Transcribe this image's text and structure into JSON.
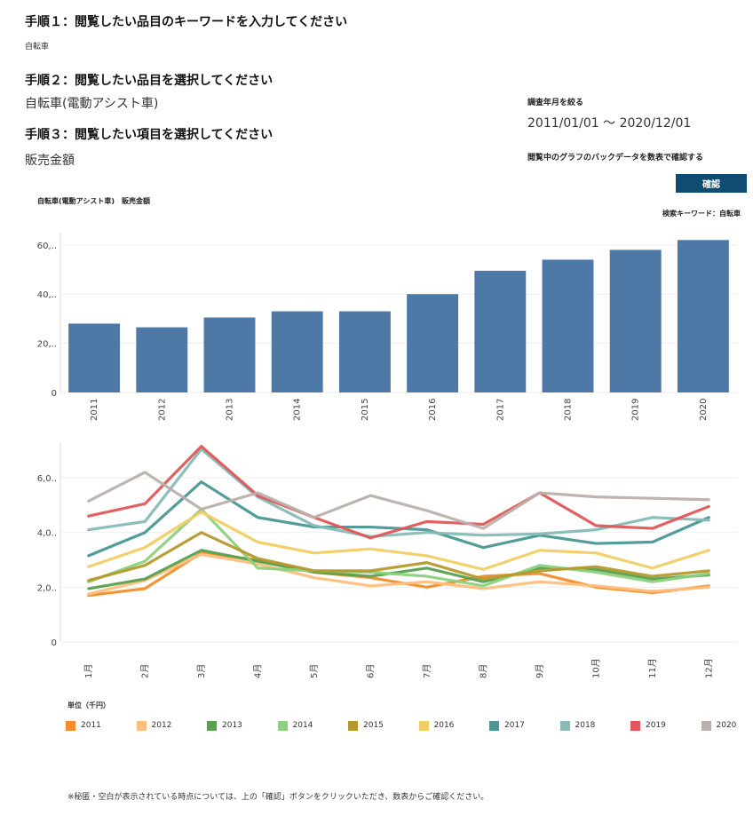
{
  "steps": {
    "step1_heading": "手順１：閲覧したい品目のキーワードを入力してください",
    "step1_value": "自転車",
    "step2_heading": "手順２：閲覧したい品目を選択してください",
    "step2_value": "自転車(電動アシスト車)",
    "step3_heading": "手順３：閲覧したい項目を選択してください",
    "step3_value": "販売金額"
  },
  "filter": {
    "period_label": "調査年月を絞る",
    "period_value": "2011/01/01 ～ 2020/12/01",
    "backdata_label": "閲覧中のグラフのバックデータを数表で確認する",
    "confirm_button": "確認"
  },
  "keyword_label": "検索キーワード：自転車",
  "unit_label": "単位（千円）",
  "footnote": "※秘匿・空白が表示されている時点については、上の「確認」ボタンをクリックいただき、数表からご確認ください。",
  "colors": {
    "bar": "#4e79a7",
    "grid": "#eeeeee",
    "button": "#0f4c71"
  },
  "chart_data": [
    {
      "type": "bar",
      "title": "自転車(電動アシスト車)　販売金額",
      "categories": [
        "2011",
        "2012",
        "2013",
        "2014",
        "2015",
        "2016",
        "2017",
        "2018",
        "2019",
        "2020"
      ],
      "values": [
        28,
        26.5,
        30.5,
        33,
        33,
        40,
        49.5,
        54,
        58,
        62
      ],
      "ylim": [
        0,
        65
      ],
      "yticks": [
        0,
        20,
        40,
        60
      ],
      "ytick_labels": [
        "0",
        "20,..",
        "40,..",
        "60,.."
      ],
      "xlabel": "",
      "ylabel": ""
    },
    {
      "type": "line",
      "categories": [
        "1月",
        "2月",
        "3月",
        "4月",
        "5月",
        "6月",
        "7月",
        "8月",
        "9月",
        "10月",
        "11月",
        "12月"
      ],
      "ylim": [
        0,
        7.3
      ],
      "yticks": [
        0,
        2,
        4,
        6
      ],
      "ytick_labels": [
        "0",
        "2,0..",
        "4,0..",
        "6,0.."
      ],
      "legend_position": "bottom",
      "series": [
        {
          "name": "2011",
          "color": "#f28e2b",
          "values": [
            1.7,
            1.95,
            3.25,
            3.0,
            2.55,
            2.35,
            2.0,
            2.4,
            2.5,
            2.0,
            1.8,
            2.05
          ]
        },
        {
          "name": "2012",
          "color": "#ffbe7d",
          "values": [
            1.75,
            2.25,
            3.2,
            2.85,
            2.35,
            2.05,
            2.2,
            1.95,
            2.2,
            2.05,
            1.85,
            2.0
          ]
        },
        {
          "name": "2013",
          "color": "#59a14f",
          "values": [
            1.95,
            2.3,
            3.35,
            2.95,
            2.55,
            2.4,
            2.7,
            2.2,
            2.7,
            2.65,
            2.3,
            2.45
          ]
        },
        {
          "name": "2014",
          "color": "#8cd17d",
          "values": [
            2.2,
            2.95,
            4.85,
            2.7,
            2.6,
            2.55,
            2.4,
            2.05,
            2.8,
            2.55,
            2.2,
            2.5
          ]
        },
        {
          "name": "2015",
          "color": "#b6992d",
          "values": [
            2.25,
            2.8,
            4.0,
            3.05,
            2.6,
            2.6,
            2.9,
            2.3,
            2.6,
            2.75,
            2.4,
            2.6
          ]
        },
        {
          "name": "2016",
          "color": "#f1ce63",
          "values": [
            2.75,
            3.45,
            4.75,
            3.65,
            3.25,
            3.4,
            3.15,
            2.65,
            3.35,
            3.25,
            2.7,
            3.35
          ]
        },
        {
          "name": "2017",
          "color": "#499894",
          "values": [
            3.15,
            4.0,
            5.85,
            4.55,
            4.2,
            4.2,
            4.1,
            3.45,
            3.9,
            3.6,
            3.65,
            4.55
          ]
        },
        {
          "name": "2018",
          "color": "#86bcb6",
          "values": [
            4.1,
            4.4,
            7.05,
            5.3,
            4.25,
            3.85,
            4.0,
            3.9,
            3.95,
            4.1,
            4.55,
            4.45
          ]
        },
        {
          "name": "2019",
          "color": "#e15759",
          "values": [
            4.6,
            5.05,
            7.15,
            5.35,
            4.55,
            3.8,
            4.4,
            4.3,
            5.45,
            4.25,
            4.15,
            4.95
          ]
        },
        {
          "name": "2020",
          "color": "#bab0ac",
          "values": [
            5.15,
            6.2,
            4.85,
            5.45,
            4.55,
            5.35,
            4.8,
            4.15,
            5.45,
            5.3,
            5.25,
            5.2
          ]
        }
      ]
    }
  ]
}
